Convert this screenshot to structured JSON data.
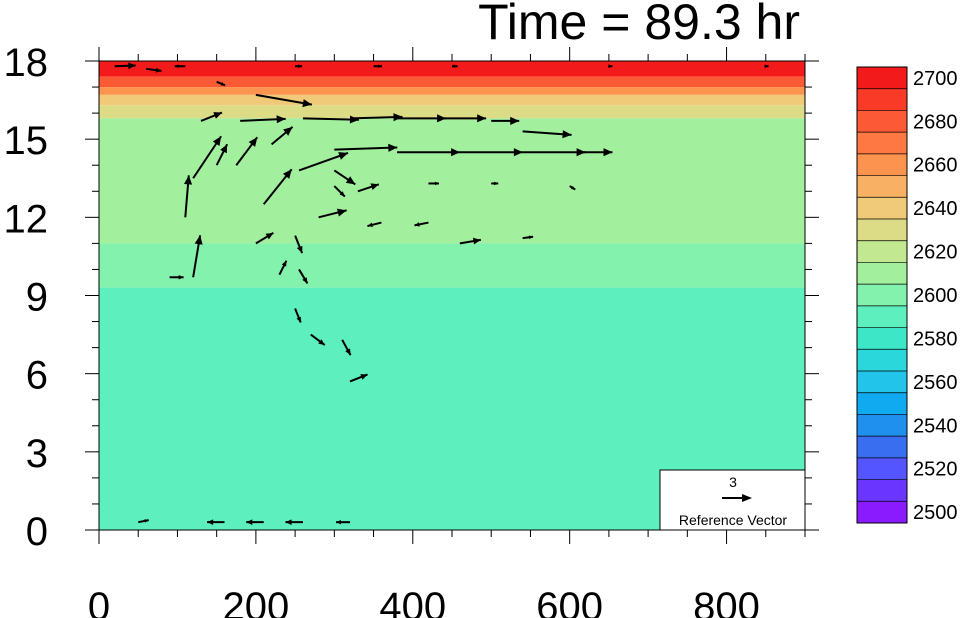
{
  "chart_data": {
    "type": "vector-contour",
    "title": "Time = 89.3 hr",
    "xlabel": "",
    "ylabel": "",
    "xlim": [
      0,
      900
    ],
    "ylim": [
      0,
      18
    ],
    "x_ticks": [
      0,
      200,
      400,
      600,
      800
    ],
    "y_ticks": [
      0,
      3,
      6,
      9,
      12,
      15,
      18
    ],
    "colorbar": {
      "levels": [
        2500,
        2510,
        2520,
        2530,
        2540,
        2550,
        2560,
        2570,
        2580,
        2590,
        2600,
        2610,
        2620,
        2630,
        2640,
        2650,
        2660,
        2670,
        2680,
        2690,
        2700
      ],
      "tick_labels": [
        "2500",
        "2520",
        "2540",
        "2560",
        "2580",
        "2600",
        "2620",
        "2640",
        "2660",
        "2680",
        "2700"
      ],
      "colors": [
        "#8a1bff",
        "#6a36ff",
        "#5555ff",
        "#3a6ef0",
        "#2090ee",
        "#10aaf0",
        "#22c4ea",
        "#2ad8dc",
        "#3ee6c8",
        "#5df0be",
        "#82f2ac",
        "#a2ef9e",
        "#c2e992",
        "#dcdc86",
        "#f0ca78",
        "#f8b064",
        "#fc9450",
        "#fd7842",
        "#fc5a36",
        "#f83a26",
        "#f21a1a"
      ]
    },
    "contour_bands": [
      {
        "z_range": [
          17.4,
          18.0
        ],
        "value": 2700
      },
      {
        "z_range": [
          17.0,
          17.4
        ],
        "value": 2680
      },
      {
        "z_range": [
          16.7,
          17.0
        ],
        "value": 2660
      },
      {
        "z_range": [
          16.3,
          16.7
        ],
        "value": 2640
      },
      {
        "z_range": [
          15.8,
          16.3
        ],
        "value": 2625
      },
      {
        "z_range": [
          11.0,
          15.8
        ],
        "value": 2610
      },
      {
        "z_range": [
          9.3,
          11.0
        ],
        "value": 2600
      },
      {
        "z_range": [
          0.0,
          9.3
        ],
        "value": 2590
      }
    ],
    "reference_vector": {
      "magnitude": "3",
      "label": "Reference Vector"
    },
    "vectors": [
      {
        "x": 20,
        "y": 17.8,
        "u": 3,
        "v": 0.1
      },
      {
        "x": 60,
        "y": 17.7,
        "u": 2.2,
        "v": -0.3
      },
      {
        "x": 110,
        "y": 17.8,
        "u": -1.5,
        "v": 0
      },
      {
        "x": 150,
        "y": 17.2,
        "u": 1.2,
        "v": -0.5
      },
      {
        "x": 250,
        "y": 17.8,
        "u": 1,
        "v": 0
      },
      {
        "x": 350,
        "y": 17.8,
        "u": 1.2,
        "v": 0
      },
      {
        "x": 450,
        "y": 17.8,
        "u": 0.8,
        "v": 0
      },
      {
        "x": 650,
        "y": 17.8,
        "u": 0.5,
        "v": 0
      },
      {
        "x": 850,
        "y": 17.8,
        "u": 0.4,
        "v": 0
      },
      {
        "x": 130,
        "y": 15.7,
        "u": 3,
        "v": 1.2
      },
      {
        "x": 180,
        "y": 15.7,
        "u": 6.5,
        "v": 0.3
      },
      {
        "x": 200,
        "y": 16.7,
        "u": 8,
        "v": -1.4
      },
      {
        "x": 260,
        "y": 15.8,
        "u": 8,
        "v": -0.2
      },
      {
        "x": 320,
        "y": 15.8,
        "u": 7.5,
        "v": 0.2
      },
      {
        "x": 380,
        "y": 15.8,
        "u": 7,
        "v": 0
      },
      {
        "x": 440,
        "y": 15.8,
        "u": 6,
        "v": 0
      },
      {
        "x": 500,
        "y": 15.7,
        "u": 4,
        "v": 0
      },
      {
        "x": 540,
        "y": 15.3,
        "u": 7,
        "v": -0.5
      },
      {
        "x": 300,
        "y": 14.6,
        "u": 9,
        "v": 0.3
      },
      {
        "x": 380,
        "y": 14.5,
        "u": 9,
        "v": 0
      },
      {
        "x": 460,
        "y": 14.5,
        "u": 9,
        "v": 0
      },
      {
        "x": 540,
        "y": 14.5,
        "u": 9,
        "v": 0
      },
      {
        "x": 610,
        "y": 14.5,
        "u": 5,
        "v": 0
      },
      {
        "x": 120,
        "y": 13.5,
        "u": 4,
        "v": 6
      },
      {
        "x": 150,
        "y": 14.0,
        "u": 1.5,
        "v": 3
      },
      {
        "x": 175,
        "y": 14.0,
        "u": 3,
        "v": 4
      },
      {
        "x": 220,
        "y": 14.8,
        "u": 3,
        "v": 2.5
      },
      {
        "x": 255,
        "y": 13.8,
        "u": 7,
        "v": 2.5
      },
      {
        "x": 300,
        "y": 13.8,
        "u": 3,
        "v": -2
      },
      {
        "x": 110,
        "y": 12.0,
        "u": 0.5,
        "v": 6
      },
      {
        "x": 210,
        "y": 12.5,
        "u": 4,
        "v": 5
      },
      {
        "x": 300,
        "y": 13.2,
        "u": 1.5,
        "v": -1.5
      },
      {
        "x": 330,
        "y": 13.0,
        "u": 3,
        "v": 1
      },
      {
        "x": 420,
        "y": 13.3,
        "u": 1.5,
        "v": 0
      },
      {
        "x": 500,
        "y": 13.3,
        "u": 1,
        "v": 0
      },
      {
        "x": 600,
        "y": 13.2,
        "u": 0.8,
        "v": -0.5
      },
      {
        "x": 200,
        "y": 11.0,
        "u": 2.5,
        "v": 1.5
      },
      {
        "x": 250,
        "y": 11.3,
        "u": 1,
        "v": -2.5
      },
      {
        "x": 280,
        "y": 12.0,
        "u": 4,
        "v": 1
      },
      {
        "x": 360,
        "y": 11.8,
        "u": -2,
        "v": -0.5
      },
      {
        "x": 420,
        "y": 11.8,
        "u": -2,
        "v": -0.4
      },
      {
        "x": 460,
        "y": 11.0,
        "u": 3,
        "v": 0.5
      },
      {
        "x": 540,
        "y": 11.2,
        "u": 1.5,
        "v": 0.2
      },
      {
        "x": 90,
        "y": 9.7,
        "u": 2,
        "v": 0
      },
      {
        "x": 120,
        "y": 9.7,
        "u": 1,
        "v": 6
      },
      {
        "x": 230,
        "y": 9.8,
        "u": 1,
        "v": 2
      },
      {
        "x": 255,
        "y": 10.0,
        "u": 1.2,
        "v": -2
      },
      {
        "x": 250,
        "y": 8.5,
        "u": 0.8,
        "v": -2
      },
      {
        "x": 270,
        "y": 7.5,
        "u": 2,
        "v": -1.5
      },
      {
        "x": 310,
        "y": 7.3,
        "u": 1.2,
        "v": -2.2
      },
      {
        "x": 320,
        "y": 5.7,
        "u": 2.5,
        "v": 1
      },
      {
        "x": 50,
        "y": 0.3,
        "u": 1.5,
        "v": 0.3
      },
      {
        "x": 160,
        "y": 0.3,
        "u": -2.5,
        "v": 0
      },
      {
        "x": 210,
        "y": 0.3,
        "u": -2.5,
        "v": 0
      },
      {
        "x": 260,
        "y": 0.3,
        "u": -2.5,
        "v": 0
      },
      {
        "x": 320,
        "y": 0.3,
        "u": -2,
        "v": 0
      }
    ]
  }
}
